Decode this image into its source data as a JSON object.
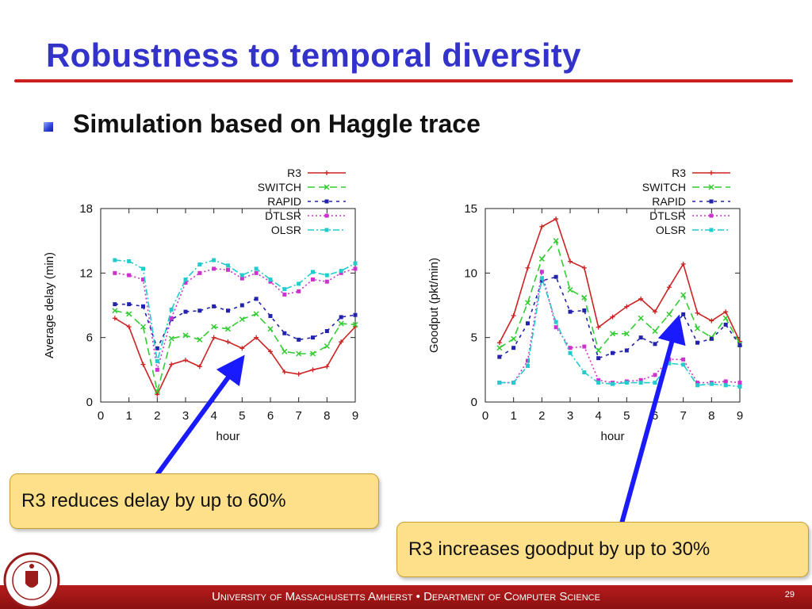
{
  "slide": {
    "title": "Robustness to temporal diversity",
    "bullet": "Simulation based on Haggle trace",
    "callout_left": "R3 reduces delay by up to 60%",
    "callout_right": "R3 increases goodput by up to 30%",
    "footer_text": "University of Massachusetts Amherst  •  Department of Computer Science",
    "page_number": "29"
  },
  "colors": {
    "title": "#3333cc",
    "rule": "#cc1f1f",
    "arrow": "#1a1aff",
    "callout_bg": "#ffe08a",
    "footer": "#a31515"
  },
  "chart_data": [
    {
      "type": "line",
      "xlabel": "hour",
      "ylabel": "Average delay (min)",
      "xlim": [
        0,
        9
      ],
      "ylim": [
        0,
        18
      ],
      "xticks": [
        0,
        1,
        2,
        3,
        4,
        5,
        6,
        7,
        8,
        9
      ],
      "yticks": [
        0,
        6,
        12,
        18
      ],
      "grid": false,
      "legend": "top-right",
      "x": [
        0.5,
        1,
        1.5,
        2,
        2.5,
        3,
        3.5,
        4,
        4.5,
        5,
        5.5,
        6,
        6.5,
        7,
        7.5,
        8,
        8.5,
        9
      ],
      "series": [
        {
          "name": "R3",
          "color": "#cc2222",
          "dash": "",
          "marker": "plus",
          "values": [
            7.8,
            7.0,
            3.5,
            0.7,
            3.5,
            3.9,
            3.3,
            6.0,
            5.6,
            5.0,
            6.0,
            4.7,
            2.8,
            2.6,
            3.0,
            3.3,
            5.6,
            7.0
          ]
        },
        {
          "name": "SWITCH",
          "color": "#33cc33",
          "dash": "9,5",
          "marker": "x",
          "values": [
            8.5,
            8.2,
            7.0,
            1.0,
            5.9,
            6.2,
            5.8,
            7.0,
            6.8,
            7.7,
            8.2,
            6.8,
            4.7,
            4.5,
            4.5,
            5.2,
            7.3,
            7.2
          ]
        },
        {
          "name": "RAPID",
          "color": "#2222aa",
          "dash": "4,5",
          "marker": "square",
          "values": [
            9.1,
            9.1,
            8.9,
            5.0,
            7.7,
            8.4,
            8.5,
            8.9,
            8.5,
            9.0,
            9.6,
            8.0,
            6.4,
            5.8,
            6.0,
            6.6,
            7.9,
            8.1
          ]
        },
        {
          "name": "DTLSR",
          "color": "#cc33cc",
          "dash": "2,3",
          "marker": "square",
          "values": [
            12.0,
            11.8,
            11.4,
            3.0,
            7.8,
            11.1,
            12.0,
            12.4,
            12.3,
            11.5,
            12.0,
            11.2,
            10.0,
            10.3,
            11.4,
            11.2,
            12.0,
            12.4
          ]
        },
        {
          "name": "OLSR",
          "color": "#22cccc",
          "dash": "8,3,2,3",
          "marker": "square",
          "values": [
            13.2,
            13.1,
            12.4,
            3.8,
            8.6,
            11.4,
            12.8,
            13.2,
            12.7,
            11.8,
            12.4,
            11.4,
            10.5,
            11.0,
            12.1,
            11.8,
            12.2,
            12.9
          ]
        }
      ]
    },
    {
      "type": "line",
      "xlabel": "hour",
      "ylabel": "Goodput (pkt/min)",
      "xlim": [
        0,
        9
      ],
      "ylim": [
        0,
        15
      ],
      "xticks": [
        0,
        1,
        2,
        3,
        4,
        5,
        6,
        7,
        8,
        9
      ],
      "yticks": [
        0,
        5,
        10,
        15
      ],
      "grid": false,
      "legend": "top-right",
      "x": [
        0.5,
        1,
        1.5,
        2,
        2.5,
        3,
        3.5,
        4,
        4.5,
        5,
        5.5,
        6,
        6.5,
        7,
        7.5,
        8,
        8.5,
        9
      ],
      "series": [
        {
          "name": "R3",
          "color": "#cc2222",
          "dash": "",
          "marker": "plus",
          "values": [
            4.6,
            6.7,
            10.4,
            13.6,
            14.2,
            10.9,
            10.4,
            5.8,
            6.6,
            7.4,
            8.0,
            7.0,
            8.9,
            10.7,
            6.9,
            6.3,
            7.0,
            4.7
          ]
        },
        {
          "name": "SWITCH",
          "color": "#33cc33",
          "dash": "9,5",
          "marker": "x",
          "values": [
            4.2,
            4.9,
            7.7,
            11.1,
            12.5,
            8.7,
            8.1,
            4.0,
            5.3,
            5.3,
            6.5,
            5.5,
            6.8,
            8.3,
            5.7,
            5.0,
            6.5,
            4.5
          ]
        },
        {
          "name": "RAPID",
          "color": "#2222aa",
          "dash": "4,5",
          "marker": "square",
          "values": [
            3.5,
            4.2,
            6.1,
            9.4,
            9.7,
            7.0,
            7.1,
            3.4,
            3.8,
            4.0,
            5.0,
            4.5,
            5.4,
            6.8,
            4.6,
            4.9,
            6.0,
            4.4
          ]
        },
        {
          "name": "DTLSR",
          "color": "#cc33cc",
          "dash": "2,3",
          "marker": "square",
          "values": [
            1.5,
            1.5,
            3.2,
            10.1,
            5.8,
            4.2,
            4.3,
            1.7,
            1.5,
            1.6,
            1.7,
            2.1,
            3.3,
            3.3,
            1.5,
            1.5,
            1.6,
            1.5
          ]
        },
        {
          "name": "OLSR",
          "color": "#22cccc",
          "dash": "8,3,2,3",
          "marker": "square",
          "values": [
            1.5,
            1.5,
            2.8,
            9.6,
            6.2,
            3.8,
            2.3,
            1.5,
            1.4,
            1.5,
            1.5,
            1.5,
            3.0,
            2.9,
            1.3,
            1.4,
            1.3,
            1.2
          ]
        }
      ]
    }
  ]
}
